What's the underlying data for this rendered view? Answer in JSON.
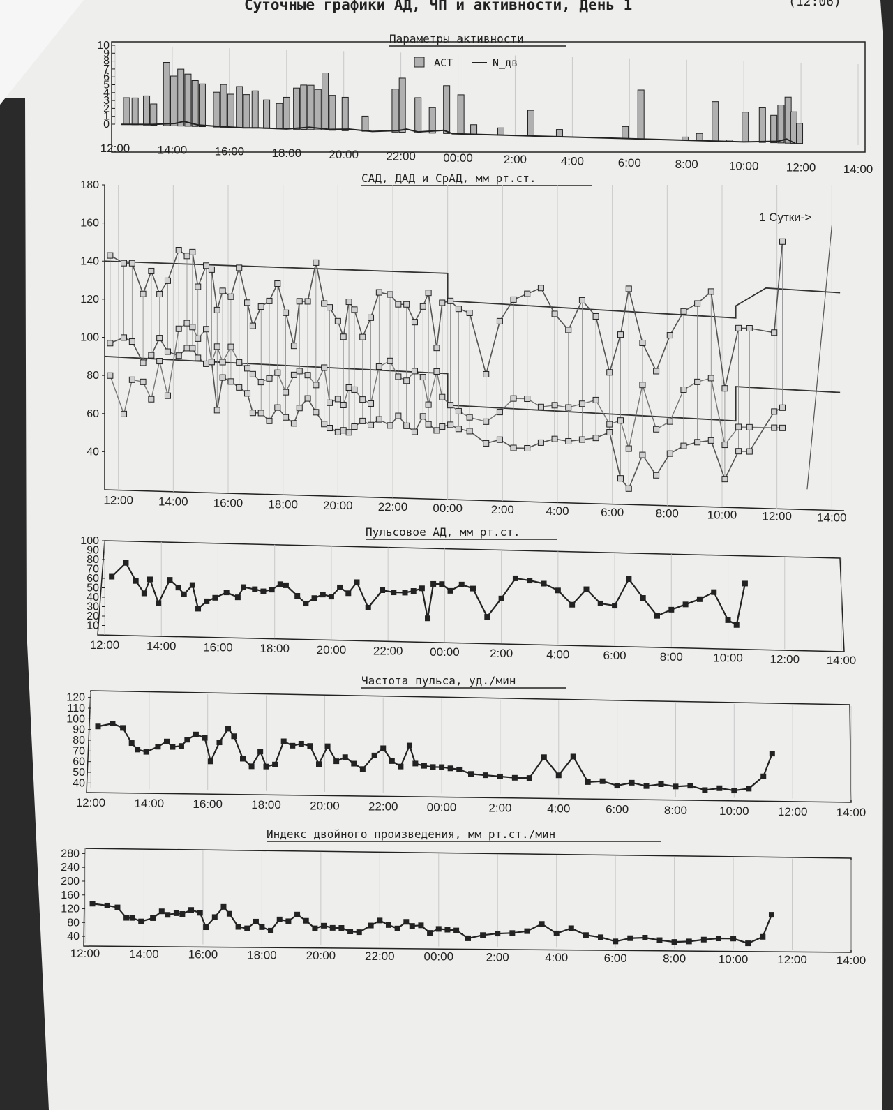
{
  "header": {
    "title": "Суточные графики АД, ЧП и активности, День 1",
    "corner": "(12:06)"
  },
  "colors": {
    "paper": "#f0f0ee",
    "ink": "#222222",
    "grid": "#c9c9c9",
    "bar": "#b0b0b0",
    "series": "#555555"
  },
  "chart_data": [
    {
      "id": "activity",
      "type": "bar",
      "title": "Параметры активности",
      "legend": [
        "ACT",
        "N_дв"
      ],
      "legend_position": "top-center",
      "x_ticks": [
        "12:00",
        "14:00",
        "16:00",
        "18:00",
        "20:00",
        "22:00",
        "00:00",
        "2:00",
        "4:00",
        "6:00",
        "8:00",
        "10:00",
        "12:00",
        "14:00"
      ],
      "x_range": [
        12,
        38
      ],
      "y_ticks": [
        "0",
        "1",
        "2",
        "3",
        "4",
        "5",
        "6",
        "7",
        "8",
        "9",
        "10"
      ],
      "y_range": [
        0,
        10
      ],
      "grid": true,
      "act": [
        [
          12.4,
          3.4
        ],
        [
          12.7,
          3.4
        ],
        [
          13.1,
          3.7
        ],
        [
          13.35,
          2.7
        ],
        [
          13.8,
          8.0
        ],
        [
          14.05,
          6.3
        ],
        [
          14.3,
          7.2
        ],
        [
          14.55,
          6.6
        ],
        [
          14.8,
          5.8
        ],
        [
          15.05,
          5.4
        ],
        [
          15.55,
          4.4
        ],
        [
          15.8,
          5.4
        ],
        [
          16.05,
          4.2
        ],
        [
          16.35,
          5.2
        ],
        [
          16.6,
          4.2
        ],
        [
          16.9,
          4.7
        ],
        [
          17.3,
          3.6
        ],
        [
          17.75,
          3.2
        ],
        [
          18.0,
          4.0
        ],
        [
          18.35,
          5.2
        ],
        [
          18.6,
          5.6
        ],
        [
          18.85,
          5.6
        ],
        [
          19.1,
          5.1
        ],
        [
          19.35,
          7.2
        ],
        [
          19.6,
          4.4
        ],
        [
          20.05,
          4.2
        ],
        [
          20.75,
          1.9
        ],
        [
          21.8,
          5.4
        ],
        [
          22.05,
          6.8
        ],
        [
          22.6,
          4.4
        ],
        [
          23.1,
          3.2
        ],
        [
          23.6,
          6.0
        ],
        [
          24.1,
          4.9
        ],
        [
          24.55,
          1.2
        ],
        [
          25.5,
          0.9
        ],
        [
          26.55,
          3.2
        ],
        [
          27.55,
          0.9
        ],
        [
          29.85,
          1.5
        ],
        [
          30.4,
          6.1
        ],
        [
          31.95,
          0.4
        ],
        [
          32.45,
          0.9
        ],
        [
          33.0,
          4.9
        ],
        [
          33.5,
          0.2
        ],
        [
          34.05,
          3.7
        ],
        [
          34.65,
          4.3
        ],
        [
          35.05,
          3.4
        ],
        [
          35.3,
          4.7
        ],
        [
          35.55,
          5.7
        ],
        [
          35.75,
          3.9
        ],
        [
          35.95,
          2.5
        ]
      ],
      "n_dv": [
        [
          12.2,
          0
        ],
        [
          13.3,
          0.1
        ],
        [
          14.1,
          0.3
        ],
        [
          14.4,
          0.6
        ],
        [
          14.9,
          0.2
        ],
        [
          15.5,
          0.1
        ],
        [
          16.5,
          0
        ],
        [
          17.0,
          0.05
        ],
        [
          18.0,
          0
        ],
        [
          18.8,
          0.3
        ],
        [
          19.5,
          0.1
        ],
        [
          20.2,
          0.2
        ],
        [
          21.0,
          0
        ],
        [
          21.9,
          0.2
        ],
        [
          22.2,
          0.4
        ],
        [
          22.6,
          0.1
        ],
        [
          23.5,
          0.4
        ],
        [
          23.8,
          0
        ],
        [
          25.0,
          0
        ],
        [
          30.0,
          0
        ],
        [
          34.0,
          0
        ],
        [
          35.2,
          0.2
        ],
        [
          35.5,
          0.5
        ],
        [
          35.8,
          0
        ]
      ]
    },
    {
      "id": "bp",
      "type": "line",
      "title": "САД, ДАД и СрАД, мм рт.ст.",
      "annotation": "1 Сутки->",
      "x_ticks": [
        "12:00",
        "14:00",
        "16:00",
        "18:00",
        "20:00",
        "22:00",
        "00:00",
        "2:00",
        "4:00",
        "6:00",
        "8:00",
        "10:00",
        "12:00",
        "14:00"
      ],
      "x_range": [
        11.5,
        38.5
      ],
      "y_ticks": [
        "40",
        "60",
        "80",
        "100",
        "120",
        "140",
        "160",
        "180"
      ],
      "y_range": [
        20,
        180
      ],
      "grid": true,
      "x": [
        11.7,
        12.2,
        12.5,
        12.9,
        13.2,
        13.5,
        13.8,
        14.2,
        14.5,
        14.7,
        14.9,
        15.2,
        15.4,
        15.6,
        15.8,
        16.1,
        16.4,
        16.7,
        16.9,
        17.2,
        17.5,
        17.8,
        18.1,
        18.4,
        18.6,
        18.9,
        19.2,
        19.5,
        19.7,
        20.0,
        20.2,
        20.4,
        20.6,
        20.9,
        21.2,
        21.5,
        21.9,
        22.2,
        22.5,
        22.8,
        23.1,
        23.3,
        23.6,
        23.8,
        24.1,
        24.4,
        24.8,
        25.4,
        25.9,
        26.4,
        26.9,
        27.4,
        27.9,
        28.4,
        28.9,
        29.4,
        29.9,
        30.3,
        30.6,
        31.1,
        31.6,
        32.1,
        32.6,
        33.1,
        33.6,
        34.1,
        34.6,
        35.0,
        35.9,
        36.2
      ],
      "sad": [
        143,
        139,
        139,
        123,
        135,
        123,
        130,
        146,
        143,
        145,
        127,
        138,
        136,
        115,
        125,
        122,
        137,
        119,
        107,
        117,
        120,
        129,
        114,
        97,
        120,
        120,
        140,
        119,
        117,
        110,
        102,
        120,
        116,
        102,
        112,
        125,
        124,
        119,
        119,
        110,
        118,
        125,
        97,
        120,
        121,
        117,
        115,
        84,
        111,
        122,
        125,
        128,
        115,
        107,
        122,
        114,
        86,
        105,
        128,
        101,
        87,
        105,
        117,
        121,
        127,
        79,
        109,
        109,
        107,
        152
      ],
      "dad": [
        97,
        100,
        98,
        87,
        91,
        100,
        93,
        91,
        95,
        95,
        90,
        87,
        88,
        63,
        80,
        78,
        75,
        72,
        62,
        62,
        58,
        65,
        60,
        57,
        65,
        70,
        63,
        57,
        55,
        53,
        54,
        53,
        56,
        59,
        57,
        60,
        57,
        62,
        57,
        54,
        62,
        58,
        55,
        57,
        58,
        56,
        55,
        49,
        51,
        47,
        47,
        50,
        52,
        51,
        52,
        53,
        56,
        33,
        28,
        45,
        35,
        46,
        50,
        52,
        53,
        34,
        48,
        48,
        68,
        70
      ],
      "srad": [
        80,
        60,
        78,
        77,
        68,
        88,
        70,
        105,
        108,
        106,
        100,
        105,
        88,
        96,
        88,
        96,
        88,
        85,
        82,
        78,
        80,
        83,
        73,
        82,
        84,
        82,
        77,
        86,
        68,
        70,
        67,
        76,
        75,
        70,
        68,
        87,
        90,
        82,
        80,
        85,
        82,
        68,
        85,
        72,
        68,
        65,
        62,
        60,
        65,
        72,
        72,
        68,
        69,
        68,
        70,
        72,
        60,
        62,
        48,
        80,
        58,
        62,
        78,
        82,
        84,
        51,
        60,
        60,
        60,
        60
      ],
      "norm_sad": [
        [
          11.5,
          140
        ],
        [
          24.0,
          135
        ],
        [
          24.0,
          121
        ],
        [
          34.5,
          114
        ],
        [
          34.5,
          120
        ],
        [
          35.6,
          129
        ],
        [
          38.3,
          127
        ]
      ],
      "norm_dad": [
        [
          11.5,
          90
        ],
        [
          24.0,
          84
        ],
        [
          24.0,
          68
        ],
        [
          34.5,
          63
        ],
        [
          34.5,
          80
        ],
        [
          38.3,
          78
        ]
      ],
      "separator_x": 37.1
    },
    {
      "id": "pulse_pressure",
      "type": "line",
      "title": "Пульсовое АД, мм рт.ст.",
      "x_ticks": [
        "12:00",
        "14:00",
        "16:00",
        "18:00",
        "20:00",
        "22:00",
        "00:00",
        "2:00",
        "4:00",
        "6:00",
        "8:00",
        "10:00",
        "12:00",
        "14:00"
      ],
      "x_range": [
        12,
        38
      ],
      "y_ticks": [
        "10",
        "20",
        "30",
        "40",
        "50",
        "60",
        "70",
        "80",
        "90",
        "100"
      ],
      "y_range": [
        0,
        100
      ],
      "grid": true,
      "x": [
        12.25,
        12.75,
        13.1,
        13.4,
        13.6,
        13.9,
        14.3,
        14.6,
        14.8,
        15.1,
        15.3,
        15.6,
        15.9,
        16.3,
        16.7,
        16.9,
        17.3,
        17.6,
        17.9,
        18.2,
        18.4,
        18.8,
        19.1,
        19.4,
        19.7,
        20.0,
        20.3,
        20.6,
        20.9,
        21.3,
        21.8,
        22.2,
        22.6,
        22.9,
        23.2,
        23.4,
        23.6,
        23.9,
        24.2,
        24.6,
        25.0,
        25.5,
        26.0,
        26.5,
        27.0,
        27.5,
        28.0,
        28.5,
        29.0,
        29.5,
        30.0,
        30.5,
        31.0,
        31.5,
        32.0,
        32.5,
        33.0,
        33.5,
        34.0,
        34.3,
        34.6
      ],
      "values": [
        62,
        77,
        58,
        45,
        60,
        35,
        60,
        52,
        45,
        55,
        30,
        38,
        42,
        48,
        43,
        54,
        52,
        50,
        52,
        58,
        57,
        46,
        38,
        44,
        48,
        46,
        56,
        50,
        62,
        35,
        54,
        52,
        52,
        54,
        57,
        25,
        62,
        62,
        55,
        62,
        58,
        28,
        48,
        70,
        68,
        65,
        58,
        43,
        60,
        45,
        43,
        72,
        52,
        33,
        40,
        46,
        52,
        60,
        30,
        25,
        70
      ]
    },
    {
      "id": "heart_rate",
      "type": "line",
      "title": "Частота пульса, уд./мин",
      "x_ticks": [
        "12:00",
        "14:00",
        "16:00",
        "18:00",
        "20:00",
        "22:00",
        "00:00",
        "2:00",
        "4:00",
        "6:00",
        "8:00",
        "10:00",
        "12:00",
        "14:00"
      ],
      "x_range": [
        12,
        38
      ],
      "y_ticks": [
        "40",
        "50",
        "60",
        "70",
        "80",
        "90",
        "100",
        "110",
        "120"
      ],
      "y_range": [
        35,
        125
      ],
      "grid": true,
      "x": [
        12.25,
        12.75,
        13.1,
        13.4,
        13.6,
        13.9,
        14.3,
        14.6,
        14.8,
        15.1,
        15.3,
        15.6,
        15.9,
        16.1,
        16.4,
        16.7,
        16.9,
        17.2,
        17.5,
        17.8,
        18.0,
        18.3,
        18.6,
        18.9,
        19.2,
        19.5,
        19.8,
        20.1,
        20.4,
        20.7,
        21.0,
        21.3,
        21.7,
        22.0,
        22.3,
        22.6,
        22.9,
        23.1,
        23.4,
        23.7,
        24.0,
        24.3,
        24.6,
        25.0,
        25.5,
        26.0,
        26.5,
        27.0,
        27.5,
        28.0,
        28.5,
        29.0,
        29.5,
        30.0,
        30.5,
        31.0,
        31.5,
        32.0,
        32.5,
        33.0,
        33.5,
        34.0,
        34.5,
        35.0,
        35.3
      ],
      "values": [
        93,
        96,
        92,
        78,
        72,
        70,
        75,
        80,
        75,
        76,
        82,
        87,
        84,
        62,
        80,
        93,
        86,
        65,
        58,
        72,
        58,
        60,
        82,
        78,
        80,
        78,
        61,
        78,
        64,
        68,
        62,
        57,
        70,
        77,
        65,
        60,
        80,
        63,
        61,
        60,
        60,
        59,
        58,
        54,
        53,
        52,
        51,
        51,
        71,
        54,
        72,
        48,
        49,
        45,
        48,
        45,
        47,
        45,
        46,
        42,
        44,
        42,
        44,
        56,
        78
      ]
    },
    {
      "id": "double_product",
      "type": "line",
      "title": "Индекс двойного произведения, мм рт.ст./мин",
      "x_ticks": [
        "12:00",
        "14:00",
        "16:00",
        "18:00",
        "20:00",
        "22:00",
        "00:00",
        "2:00",
        "4:00",
        "6:00",
        "8:00",
        "10:00",
        "12:00",
        "14:00"
      ],
      "x_range": [
        12,
        38
      ],
      "y_ticks": [
        "40",
        "80",
        "120",
        "160",
        "200",
        "240",
        "280"
      ],
      "y_range": [
        20,
        295
      ],
      "grid": true,
      "x": [
        12.25,
        12.75,
        13.1,
        13.4,
        13.6,
        13.9,
        14.3,
        14.6,
        14.8,
        15.1,
        15.3,
        15.6,
        15.9,
        16.1,
        16.4,
        16.7,
        16.9,
        17.2,
        17.5,
        17.8,
        18.0,
        18.3,
        18.6,
        18.9,
        19.2,
        19.5,
        19.8,
        20.1,
        20.4,
        20.7,
        21.0,
        21.3,
        21.7,
        22.0,
        22.3,
        22.6,
        22.9,
        23.1,
        23.4,
        23.7,
        24.0,
        24.3,
        24.6,
        25.0,
        25.5,
        26.0,
        26.5,
        27.0,
        27.5,
        28.0,
        28.5,
        29.0,
        29.5,
        30.0,
        30.5,
        31.0,
        31.5,
        32.0,
        32.5,
        33.0,
        33.5,
        34.0,
        34.5,
        35.0,
        35.3
      ],
      "values": [
        135,
        130,
        125,
        95,
        95,
        85,
        95,
        115,
        105,
        110,
        108,
        120,
        112,
        70,
        100,
        130,
        110,
        72,
        68,
        88,
        72,
        62,
        95,
        90,
        110,
        92,
        70,
        78,
        72,
        72,
        62,
        60,
        80,
        95,
        82,
        72,
        92,
        80,
        82,
        60,
        72,
        70,
        68,
        45,
        55,
        60,
        62,
        68,
        90,
        62,
        78,
        58,
        52,
        40,
        50,
        52,
        45,
        40,
        42,
        48,
        52,
        52,
        38,
        58,
        125
      ]
    }
  ]
}
